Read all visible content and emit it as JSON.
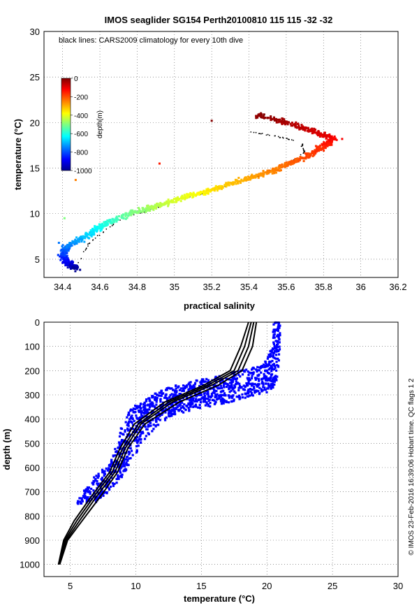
{
  "title": "IMOS seaglider SG154 Perth20100810 115  115  -32  -32",
  "side_note": "© IMOS 23-Feb-2016 16:39:06 Hobart time. QC flags 1  2",
  "chart_data": [
    {
      "type": "scatter",
      "id": "ts",
      "annotation": "black lines: CARS2009 climatology for every 10th dive",
      "xlabel": "practical salinity",
      "ylabel": "temperature (°C)",
      "xlim": [
        34.3,
        36.2
      ],
      "ylim": [
        3,
        30
      ],
      "xticks": [
        34.4,
        34.6,
        34.8,
        35,
        35.2,
        35.4,
        35.6,
        35.8,
        36,
        36.2
      ],
      "xtick_labels": [
        "34.4",
        "34.6",
        "34.8",
        "35",
        "35.2",
        "35.4",
        "35.6",
        "35.8",
        "36",
        "36.2"
      ],
      "yticks": [
        5,
        10,
        15,
        20,
        25,
        30
      ],
      "ytick_labels": [
        "5",
        "10",
        "15",
        "20",
        "25",
        "30"
      ],
      "grid": true,
      "colorbar": {
        "label": "depth(m)",
        "range": [
          -1000,
          0
        ],
        "ticks": [
          0,
          -200,
          -400,
          -600,
          -800,
          -1000
        ],
        "tick_labels": [
          "0",
          "-200",
          "-400",
          "-600",
          "-800",
          "-1000"
        ],
        "colormap": [
          "#00008f",
          "#0000ff",
          "#0080ff",
          "#00ffff",
          "#80ff80",
          "#ffff00",
          "#ff8000",
          "#ff0000",
          "#800000"
        ]
      },
      "profile": [
        {
          "s": 34.47,
          "t": 3.9,
          "depth": 1000
        },
        {
          "s": 34.43,
          "t": 4.6,
          "depth": 900
        },
        {
          "s": 34.4,
          "t": 5.5,
          "depth": 820
        },
        {
          "s": 34.43,
          "t": 6.5,
          "depth": 750
        },
        {
          "s": 34.52,
          "t": 7.5,
          "depth": 680
        },
        {
          "s": 34.62,
          "t": 8.8,
          "depth": 600
        },
        {
          "s": 34.75,
          "t": 9.9,
          "depth": 520
        },
        {
          "s": 34.9,
          "t": 10.8,
          "depth": 450
        },
        {
          "s": 35.05,
          "t": 11.8,
          "depth": 400
        },
        {
          "s": 35.2,
          "t": 12.6,
          "depth": 350
        },
        {
          "s": 35.35,
          "t": 13.6,
          "depth": 300
        },
        {
          "s": 35.5,
          "t": 14.5,
          "depth": 260
        },
        {
          "s": 35.62,
          "t": 15.5,
          "depth": 220
        },
        {
          "s": 35.73,
          "t": 16.5,
          "depth": 190
        },
        {
          "s": 35.82,
          "t": 17.6,
          "depth": 150
        },
        {
          "s": 35.85,
          "t": 18.3,
          "depth": 120
        },
        {
          "s": 35.75,
          "t": 19.0,
          "depth": 80
        },
        {
          "s": 35.6,
          "t": 20.0,
          "depth": 40
        },
        {
          "s": 35.45,
          "t": 20.8,
          "depth": 10
        }
      ],
      "outliers": [
        {
          "s": 35.2,
          "t": 20.2,
          "depth": 5
        },
        {
          "s": 34.92,
          "t": 15.5,
          "depth": 150
        },
        {
          "s": 34.47,
          "t": 13.7,
          "depth": 250
        },
        {
          "s": 34.41,
          "t": 9.5,
          "depth": 500
        },
        {
          "s": 35.9,
          "t": 18.2,
          "depth": 120
        },
        {
          "s": 34.38,
          "t": 6.8,
          "depth": 760
        }
      ],
      "climatology": [
        [
          34.47,
          4.2
        ],
        [
          34.55,
          7.0
        ],
        [
          34.7,
          9.2
        ],
        [
          34.95,
          11.0
        ],
        [
          35.2,
          12.5
        ],
        [
          35.45,
          14.2
        ],
        [
          35.62,
          15.6
        ],
        [
          35.7,
          16.8
        ],
        [
          35.68,
          17.8
        ],
        [
          35.55,
          18.5
        ],
        [
          35.4,
          19.0
        ]
      ]
    },
    {
      "type": "scatter",
      "id": "tz",
      "xlabel": "temperature (°C)",
      "ylabel": "depth (m)",
      "xlim": [
        3,
        30
      ],
      "ylim": [
        1050,
        0
      ],
      "xticks": [
        5,
        10,
        15,
        20,
        25,
        30
      ],
      "xtick_labels": [
        "5",
        "10",
        "15",
        "20",
        "25",
        "30"
      ],
      "yticks": [
        0,
        100,
        200,
        300,
        400,
        500,
        600,
        700,
        800,
        900,
        1000
      ],
      "ytick_labels": [
        "0",
        "100",
        "200",
        "300",
        "400",
        "500",
        "600",
        "700",
        "800",
        "900",
        "1000"
      ],
      "grid": true,
      "series": [
        {
          "name": "glider",
          "color": "#0000ff",
          "profile": [
            {
              "t": 20.9,
              "z": 0
            },
            {
              "t": 20.9,
              "z": 100
            },
            {
              "t": 20.7,
              "z": 180
            },
            {
              "t": 20.0,
              "z": 250
            },
            {
              "t": 19.0,
              "z": 280
            },
            {
              "t": 17.5,
              "z": 300
            },
            {
              "t": 15.5,
              "z": 320
            },
            {
              "t": 13.5,
              "z": 345
            },
            {
              "t": 11.5,
              "z": 380
            },
            {
              "t": 10.2,
              "z": 430
            },
            {
              "t": 9.5,
              "z": 500
            },
            {
              "t": 8.9,
              "z": 580
            },
            {
              "t": 8.3,
              "z": 640
            },
            {
              "t": 7.5,
              "z": 680
            },
            {
              "t": 6.5,
              "z": 720
            },
            {
              "t": 5.8,
              "z": 750
            }
          ],
          "envelope": [
            {
              "z": 0,
              "lo": 20.5,
              "hi": 21.0
            },
            {
              "z": 100,
              "lo": 20.4,
              "hi": 21.0
            },
            {
              "z": 180,
              "lo": 19.6,
              "hi": 20.9
            },
            {
              "z": 230,
              "lo": 15.5,
              "hi": 20.8
            },
            {
              "z": 260,
              "lo": 13.0,
              "hi": 20.6
            },
            {
              "z": 290,
              "lo": 11.5,
              "hi": 20.2
            },
            {
              "z": 320,
              "lo": 10.5,
              "hi": 18.0
            },
            {
              "z": 350,
              "lo": 9.8,
              "hi": 15.5
            },
            {
              "z": 380,
              "lo": 9.3,
              "hi": 13.0
            },
            {
              "z": 430,
              "lo": 8.9,
              "hi": 11.6
            },
            {
              "z": 500,
              "lo": 8.6,
              "hi": 10.5
            },
            {
              "z": 580,
              "lo": 8.0,
              "hi": 9.6
            },
            {
              "z": 640,
              "lo": 6.8,
              "hi": 9.0
            },
            {
              "z": 700,
              "lo": 6.0,
              "hi": 8.0
            },
            {
              "z": 750,
              "lo": 5.4,
              "hi": 6.8
            }
          ]
        },
        {
          "name": "CARS2009 climatology",
          "color": "#000000",
          "lines": [
            [
              [
                18.8,
                0
              ],
              [
                18.3,
                100
              ],
              [
                17.5,
                200
              ],
              [
                15.5,
                260
              ],
              [
                12.5,
                330
              ],
              [
                10.2,
                420
              ],
              [
                9.0,
                520
              ],
              [
                8.2,
                620
              ],
              [
                6.8,
                720
              ],
              [
                5.5,
                820
              ],
              [
                4.6,
                900
              ],
              [
                4.1,
                1000
              ]
            ],
            [
              [
                19.0,
                0
              ],
              [
                18.6,
                100
              ],
              [
                17.8,
                200
              ],
              [
                15.8,
                260
              ],
              [
                12.8,
                330
              ],
              [
                10.4,
                420
              ],
              [
                9.2,
                520
              ],
              [
                8.4,
                620
              ],
              [
                7.0,
                720
              ],
              [
                5.7,
                820
              ],
              [
                4.7,
                900
              ],
              [
                4.1,
                1000
              ]
            ],
            [
              [
                19.2,
                0
              ],
              [
                18.9,
                100
              ],
              [
                18.1,
                200
              ],
              [
                16.3,
                260
              ],
              [
                13.3,
                330
              ],
              [
                10.7,
                420
              ],
              [
                9.4,
                520
              ],
              [
                8.6,
                620
              ],
              [
                7.3,
                720
              ],
              [
                5.9,
                820
              ],
              [
                4.8,
                900
              ],
              [
                4.2,
                1000
              ]
            ],
            [
              [
                18.6,
                0
              ],
              [
                18.0,
                100
              ],
              [
                17.2,
                200
              ],
              [
                15.2,
                260
              ],
              [
                12.2,
                330
              ],
              [
                9.9,
                420
              ],
              [
                8.8,
                520
              ],
              [
                8.0,
                620
              ],
              [
                6.6,
                720
              ],
              [
                5.3,
                820
              ],
              [
                4.5,
                900
              ],
              [
                4.1,
                1000
              ]
            ]
          ]
        }
      ]
    }
  ]
}
